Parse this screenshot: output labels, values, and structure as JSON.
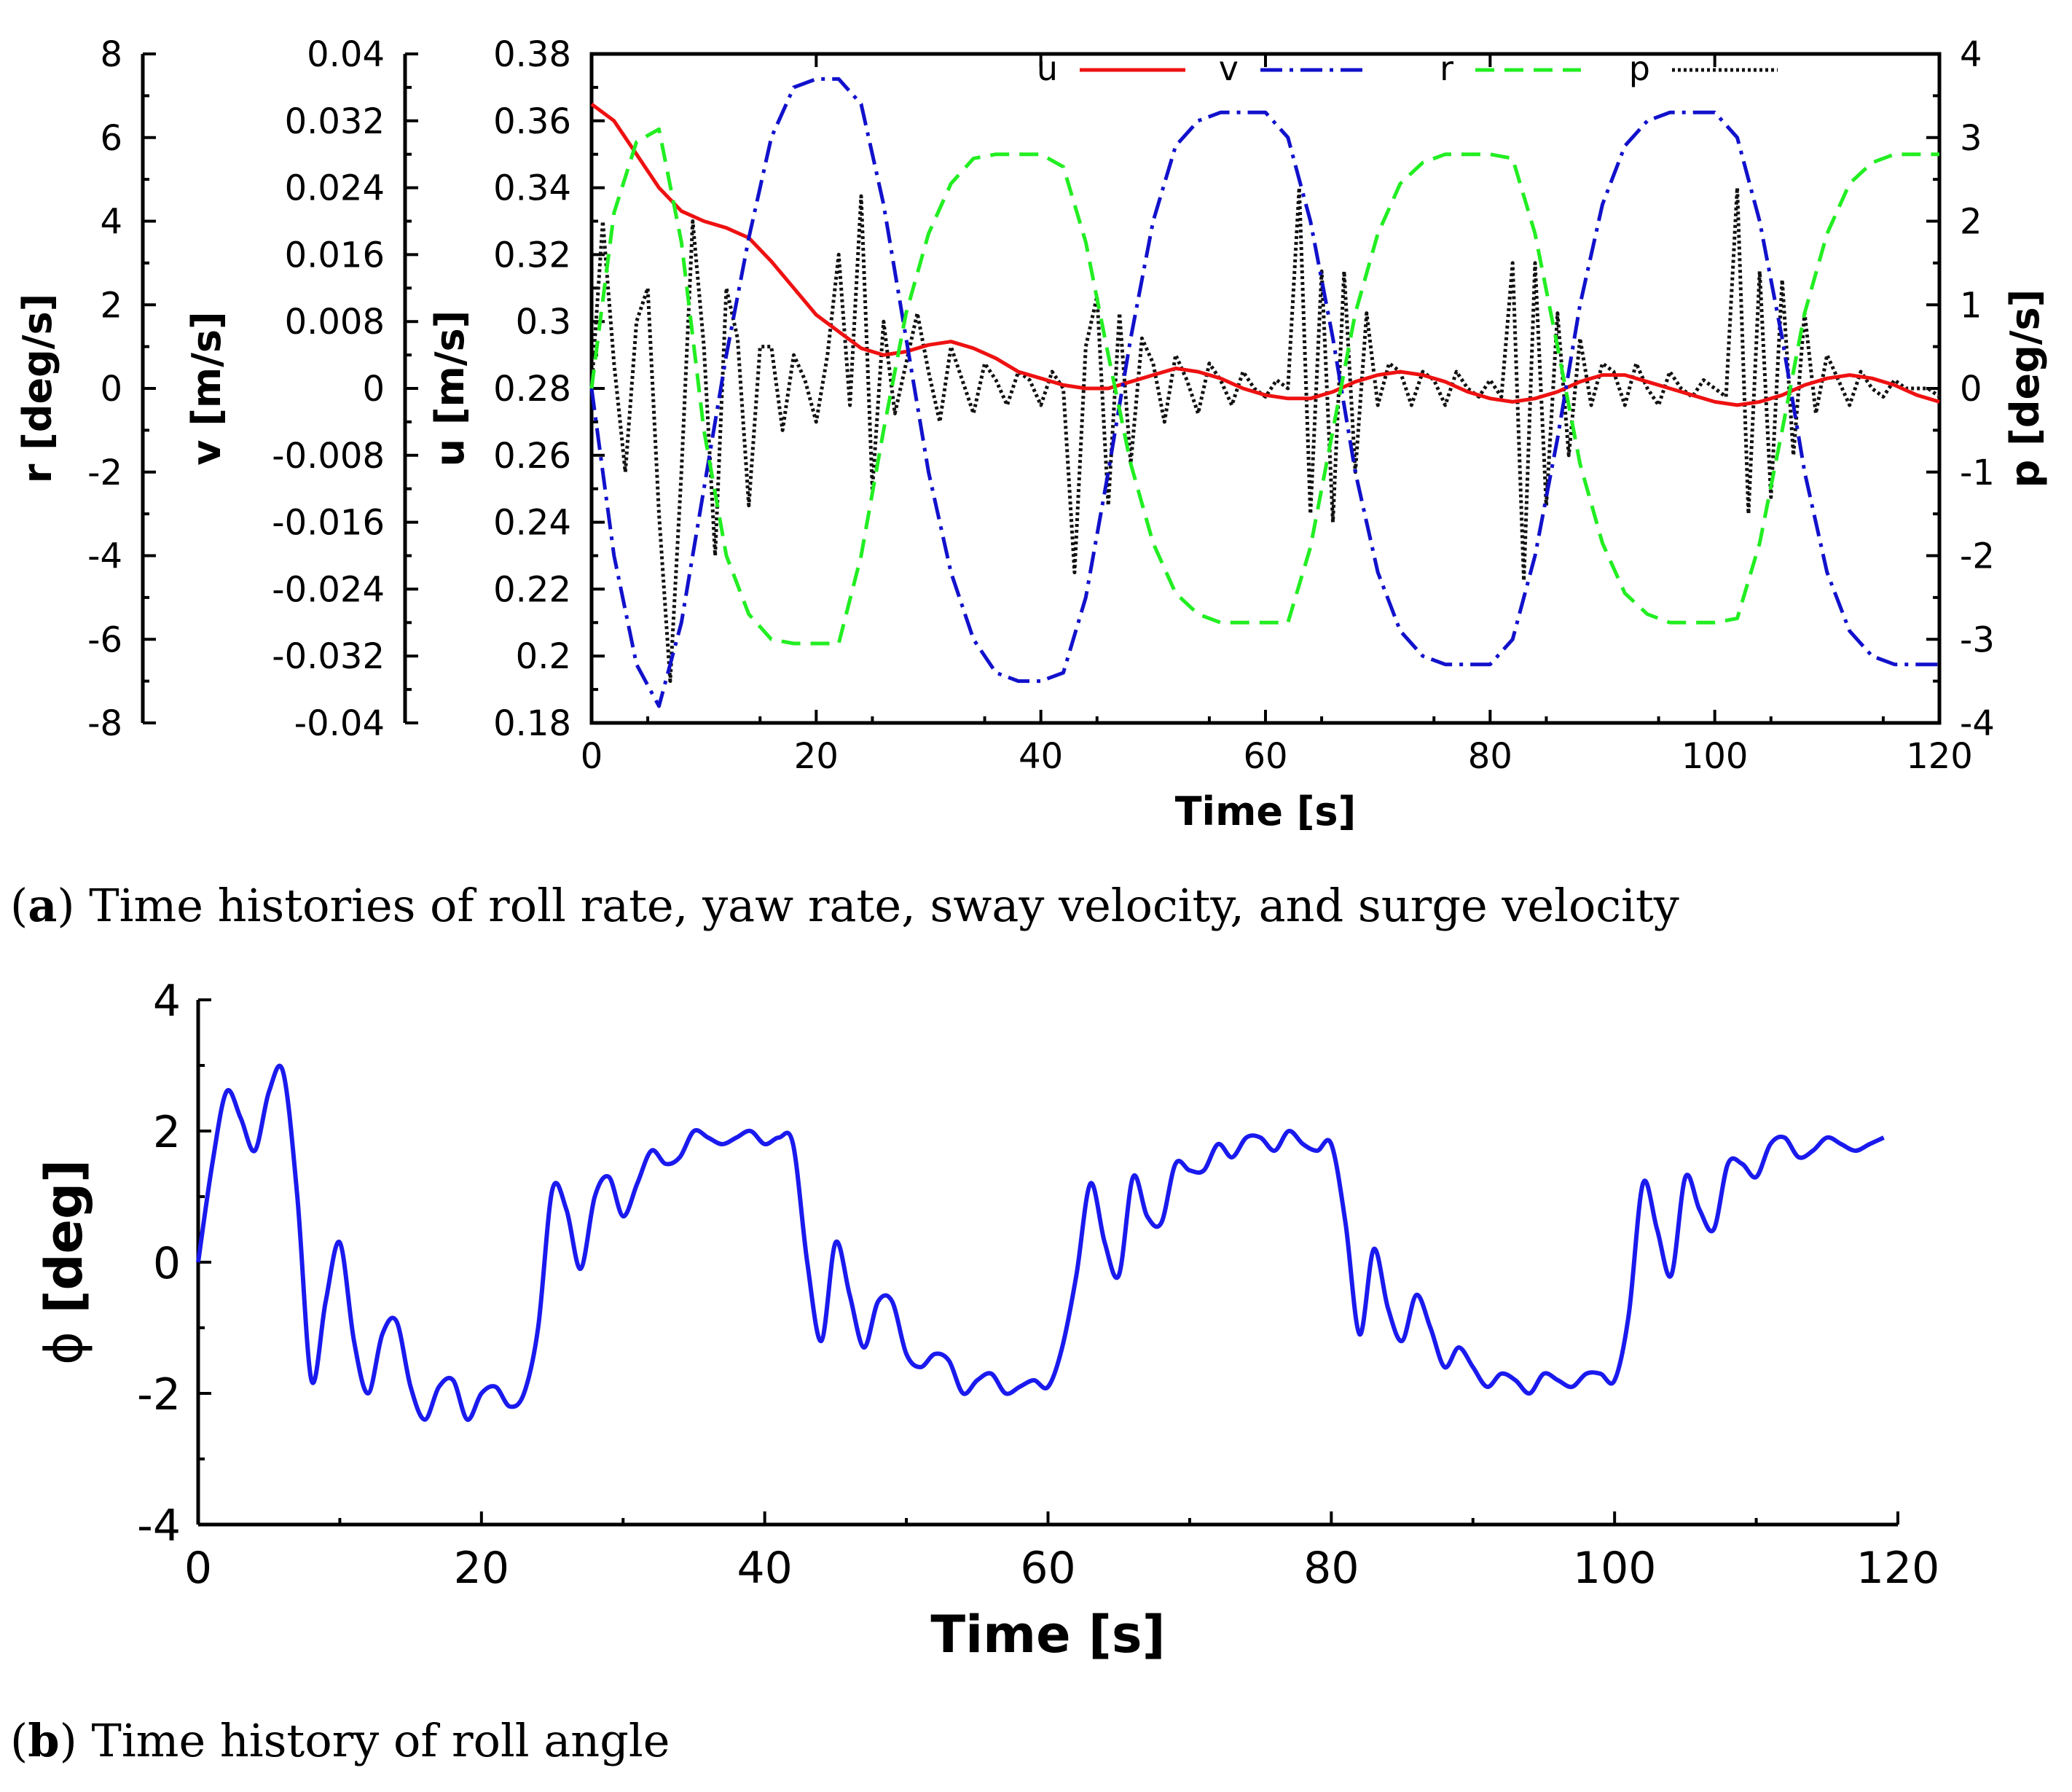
{
  "chart_data": [
    {
      "type": "line",
      "caption_letter": "a",
      "caption_text": "Time histories of roll rate, yaw rate, sway velocity, and surge velocity",
      "xlabel": "Time [s]",
      "xlim": [
        0,
        120
      ],
      "xticks": [
        "0",
        "20",
        "40",
        "60",
        "80",
        "100",
        "120"
      ],
      "axes": {
        "r": {
          "label": "r [deg/s]",
          "range": [
            -8,
            8
          ],
          "ticks": [
            "8",
            "6",
            "4",
            "2",
            "0",
            "-2",
            "-4",
            "-6",
            "-8"
          ]
        },
        "v": {
          "label": "v [m/s]",
          "range": [
            -0.04,
            0.04
          ],
          "ticks": [
            "0.04",
            "0.032",
            "0.024",
            "0.016",
            "0.008",
            "0",
            "-0.008",
            "-0.016",
            "-0.024",
            "-0.032",
            "-0.04"
          ]
        },
        "u": {
          "label": "u [m/s]",
          "range": [
            0.18,
            0.38
          ],
          "ticks": [
            "0.38",
            "0.36",
            "0.34",
            "0.32",
            "0.3",
            "0.28",
            "0.26",
            "0.24",
            "0.22",
            "0.2",
            "0.18"
          ]
        },
        "p": {
          "label": "p [deg/s]",
          "range": [
            -4,
            4
          ],
          "ticks": [
            "4",
            "3",
            "2",
            "1",
            "0",
            "-1",
            "-2",
            "-3",
            "-4"
          ]
        }
      },
      "legend_position": "top-right",
      "series": [
        {
          "name": "u",
          "axis": "u",
          "color": "#ee1111",
          "dash": "solid",
          "x": [
            0,
            2,
            4,
            6,
            8,
            10,
            12,
            14,
            16,
            18,
            20,
            22,
            24,
            26,
            28,
            30,
            32,
            34,
            36,
            38,
            40,
            42,
            44,
            46,
            48,
            50,
            52,
            54,
            56,
            58,
            60,
            62,
            64,
            66,
            68,
            70,
            72,
            74,
            76,
            78,
            80,
            82,
            84,
            86,
            88,
            90,
            92,
            94,
            96,
            98,
            100,
            102,
            104,
            106,
            108,
            110,
            112,
            114,
            116,
            118,
            120
          ],
          "y": [
            0.365,
            0.36,
            0.35,
            0.34,
            0.333,
            0.33,
            0.328,
            0.325,
            0.318,
            0.31,
            0.302,
            0.297,
            0.292,
            0.29,
            0.291,
            0.293,
            0.294,
            0.292,
            0.289,
            0.285,
            0.283,
            0.281,
            0.28,
            0.28,
            0.282,
            0.284,
            0.286,
            0.285,
            0.283,
            0.28,
            0.278,
            0.277,
            0.277,
            0.279,
            0.282,
            0.284,
            0.285,
            0.284,
            0.282,
            0.279,
            0.277,
            0.276,
            0.277,
            0.279,
            0.282,
            0.284,
            0.284,
            0.282,
            0.28,
            0.278,
            0.276,
            0.275,
            0.276,
            0.278,
            0.281,
            0.283,
            0.284,
            0.283,
            0.281,
            0.278,
            0.276
          ]
        },
        {
          "name": "v",
          "axis": "v",
          "color": "#1111cc",
          "dash": "dashdot",
          "x": [
            0,
            2,
            4,
            6,
            8,
            10,
            12,
            14,
            16,
            18,
            20,
            22,
            24,
            26,
            28,
            30,
            32,
            34,
            36,
            38,
            40,
            42,
            44,
            46,
            48,
            50,
            52,
            54,
            56,
            58,
            60,
            62,
            64,
            66,
            68,
            70,
            72,
            74,
            76,
            78,
            80,
            82,
            84,
            86,
            88,
            90,
            92,
            94,
            96,
            98,
            100,
            102,
            104,
            106,
            108,
            110,
            112,
            114,
            116,
            118,
            120
          ],
          "y": [
            0,
            -0.02,
            -0.033,
            -0.038,
            -0.028,
            -0.012,
            0.004,
            0.018,
            0.03,
            0.036,
            0.037,
            0.037,
            0.034,
            0.022,
            0.006,
            -0.01,
            -0.022,
            -0.03,
            -0.034,
            -0.035,
            -0.035,
            -0.034,
            -0.025,
            -0.01,
            0.006,
            0.02,
            0.029,
            0.032,
            0.033,
            0.033,
            0.033,
            0.03,
            0.02,
            0.006,
            -0.01,
            -0.022,
            -0.029,
            -0.032,
            -0.033,
            -0.033,
            -0.033,
            -0.03,
            -0.02,
            -0.006,
            0.01,
            0.022,
            0.029,
            0.032,
            0.033,
            0.033,
            0.033,
            0.03,
            0.02,
            0.006,
            -0.01,
            -0.022,
            -0.029,
            -0.032,
            -0.033,
            -0.033,
            -0.033
          ]
        },
        {
          "name": "r",
          "axis": "r",
          "color": "#22ee22",
          "dash": "dashed",
          "x": [
            0,
            2,
            4,
            6,
            8,
            10,
            12,
            14,
            16,
            18,
            20,
            22,
            24,
            26,
            28,
            30,
            32,
            34,
            36,
            38,
            40,
            42,
            44,
            46,
            48,
            50,
            52,
            54,
            56,
            58,
            60,
            62,
            64,
            66,
            68,
            70,
            72,
            74,
            76,
            78,
            80,
            82,
            84,
            86,
            88,
            90,
            92,
            94,
            96,
            98,
            100,
            102,
            104,
            106,
            108,
            110,
            112,
            114,
            116,
            118,
            120
          ],
          "y": [
            0,
            4.2,
            5.9,
            6.2,
            3.5,
            -1,
            -4,
            -5.4,
            -6,
            -6.1,
            -6.1,
            -6.1,
            -4,
            -1,
            1.8,
            3.7,
            4.9,
            5.5,
            5.6,
            5.6,
            5.6,
            5.3,
            3.5,
            0.8,
            -1.8,
            -3.7,
            -4.9,
            -5.4,
            -5.6,
            -5.6,
            -5.6,
            -5.6,
            -3.8,
            -1,
            1.8,
            3.7,
            4.9,
            5.4,
            5.6,
            5.6,
            5.6,
            5.5,
            3.7,
            1,
            -1.8,
            -3.7,
            -4.9,
            -5.4,
            -5.6,
            -5.6,
            -5.6,
            -5.5,
            -3.7,
            -1,
            1.8,
            3.7,
            4.9,
            5.4,
            5.6,
            5.6,
            5.6
          ]
        },
        {
          "name": "p",
          "axis": "p",
          "color": "#111111",
          "dash": "dotted",
          "x": [
            0,
            1,
            2,
            3,
            4,
            5,
            6,
            7,
            8,
            9,
            10,
            11,
            12,
            13,
            14,
            15,
            16,
            17,
            18,
            19,
            20,
            21,
            22,
            23,
            24,
            25,
            26,
            27,
            28,
            29,
            30,
            31,
            32,
            33,
            34,
            35,
            36,
            37,
            38,
            39,
            40,
            41,
            42,
            43,
            44,
            45,
            46,
            47,
            48,
            49,
            50,
            51,
            52,
            53,
            54,
            55,
            56,
            57,
            58,
            59,
            60,
            61,
            62,
            63,
            64,
            65,
            66,
            67,
            68,
            69,
            70,
            71,
            72,
            73,
            74,
            75,
            76,
            77,
            78,
            79,
            80,
            81,
            82,
            83,
            84,
            85,
            86,
            87,
            88,
            89,
            90,
            91,
            92,
            93,
            94,
            95,
            96,
            97,
            98,
            99,
            100,
            101,
            102,
            103,
            104,
            105,
            106,
            107,
            108,
            109,
            110,
            111,
            112,
            113,
            114,
            115,
            116,
            117,
            118,
            119,
            120
          ],
          "y": [
            0,
            2.0,
            0.3,
            -1.0,
            0.8,
            1.2,
            -1.5,
            -3.5,
            -1.0,
            2.0,
            0.5,
            -2.0,
            1.2,
            0.6,
            -1.4,
            0.5,
            0.5,
            -0.5,
            0.4,
            0.1,
            -0.4,
            0.4,
            1.6,
            -0.2,
            2.3,
            -1.2,
            0.8,
            -0.3,
            0.3,
            0.9,
            0.2,
            -0.4,
            0.5,
            0.1,
            -0.3,
            0.3,
            0.1,
            -0.2,
            0.2,
            0.1,
            -0.2,
            0.2,
            0.0,
            -2.2,
            0.5,
            1.1,
            -1.4,
            0.9,
            -0.9,
            0.6,
            0.3,
            -0.4,
            0.4,
            0.1,
            -0.3,
            0.3,
            0.1,
            -0.2,
            0.2,
            0.0,
            -0.1,
            0.1,
            0.0,
            2.4,
            -1.5,
            1.4,
            -1.6,
            1.4,
            -1.0,
            0.9,
            -0.2,
            0.3,
            0.2,
            -0.2,
            0.2,
            0.1,
            -0.2,
            0.2,
            0.0,
            -0.1,
            0.1,
            -0.1,
            1.5,
            -2.3,
            1.5,
            -1.4,
            0.9,
            -0.8,
            0.6,
            -0.2,
            0.3,
            0.2,
            -0.2,
            0.3,
            0.0,
            -0.2,
            0.2,
            0.0,
            -0.1,
            0.1,
            0.0,
            -0.1,
            2.4,
            -1.5,
            1.4,
            -1.3,
            1.3,
            -0.8,
            0.9,
            -0.3,
            0.4,
            0.1,
            -0.2,
            0.2,
            0.0,
            -0.1,
            0.1,
            0.0,
            0.0,
            0.0,
            -0.1
          ]
        }
      ]
    },
    {
      "type": "line",
      "caption_letter": "b",
      "caption_text": "Time history of roll angle",
      "xlabel": "Time [s]",
      "ylabel_symbol": "ϕ",
      "ylabel_unit": "[deg]",
      "xlim": [
        0,
        120
      ],
      "ylim": [
        -4,
        4
      ],
      "xticks": [
        "0",
        "20",
        "40",
        "60",
        "80",
        "100",
        "120"
      ],
      "yticks": [
        "4",
        "2",
        "0",
        "-2",
        "-4"
      ],
      "series": [
        {
          "name": "",
          "color": "#1a1aee",
          "x": [
            0,
            1,
            2,
            3,
            4,
            5,
            6,
            7,
            8,
            9,
            10,
            11,
            12,
            13,
            14,
            15,
            16,
            17,
            18,
            19,
            20,
            21,
            22,
            23,
            24,
            25,
            26,
            27,
            28,
            29,
            30,
            31,
            32,
            33,
            34,
            35,
            36,
            37,
            38,
            39,
            40,
            41,
            42,
            43,
            44,
            45,
            46,
            47,
            48,
            49,
            50,
            51,
            52,
            53,
            54,
            55,
            56,
            57,
            58,
            59,
            60,
            61,
            62,
            63,
            64,
            65,
            66,
            67,
            68,
            69,
            70,
            71,
            72,
            73,
            74,
            75,
            76,
            77,
            78,
            79,
            80,
            81,
            82,
            83,
            84,
            85,
            86,
            87,
            88,
            89,
            90,
            91,
            92,
            93,
            94,
            95,
            96,
            97,
            98,
            99,
            100,
            101,
            102,
            103,
            104,
            105,
            106,
            107,
            108,
            109,
            110,
            111,
            112,
            113,
            114,
            115,
            116,
            117,
            118,
            119
          ],
          "y": [
            0,
            1.5,
            2.6,
            2.2,
            1.7,
            2.6,
            2.9,
            1.0,
            -1.8,
            -0.6,
            0.3,
            -1.2,
            -2.0,
            -1.1,
            -0.9,
            -1.9,
            -2.4,
            -1.9,
            -1.8,
            -2.4,
            -2.0,
            -1.9,
            -2.2,
            -2.0,
            -1.0,
            1.1,
            0.8,
            -0.1,
            1.0,
            1.3,
            0.7,
            1.2,
            1.7,
            1.5,
            1.6,
            2.0,
            1.9,
            1.8,
            1.9,
            2.0,
            1.8,
            1.9,
            1.8,
            0.0,
            -1.2,
            0.3,
            -0.5,
            -1.3,
            -0.6,
            -0.6,
            -1.4,
            -1.6,
            -1.4,
            -1.5,
            -2.0,
            -1.8,
            -1.7,
            -2.0,
            -1.9,
            -1.8,
            -1.9,
            -1.3,
            -0.2,
            1.2,
            0.3,
            -0.2,
            1.3,
            0.7,
            0.6,
            1.5,
            1.4,
            1.4,
            1.8,
            1.6,
            1.9,
            1.9,
            1.7,
            2.0,
            1.8,
            1.7,
            1.8,
            0.6,
            -1.1,
            0.2,
            -0.7,
            -1.2,
            -0.5,
            -1.0,
            -1.6,
            -1.3,
            -1.6,
            -1.9,
            -1.7,
            -1.8,
            -2.0,
            -1.7,
            -1.8,
            -1.9,
            -1.7,
            -1.7,
            -1.8,
            -0.8,
            1.2,
            0.5,
            -0.2,
            1.3,
            0.8,
            0.5,
            1.5,
            1.5,
            1.3,
            1.8,
            1.9,
            1.6,
            1.7,
            1.9,
            1.8,
            1.7,
            1.8,
            1.9
          ]
        }
      ]
    }
  ]
}
